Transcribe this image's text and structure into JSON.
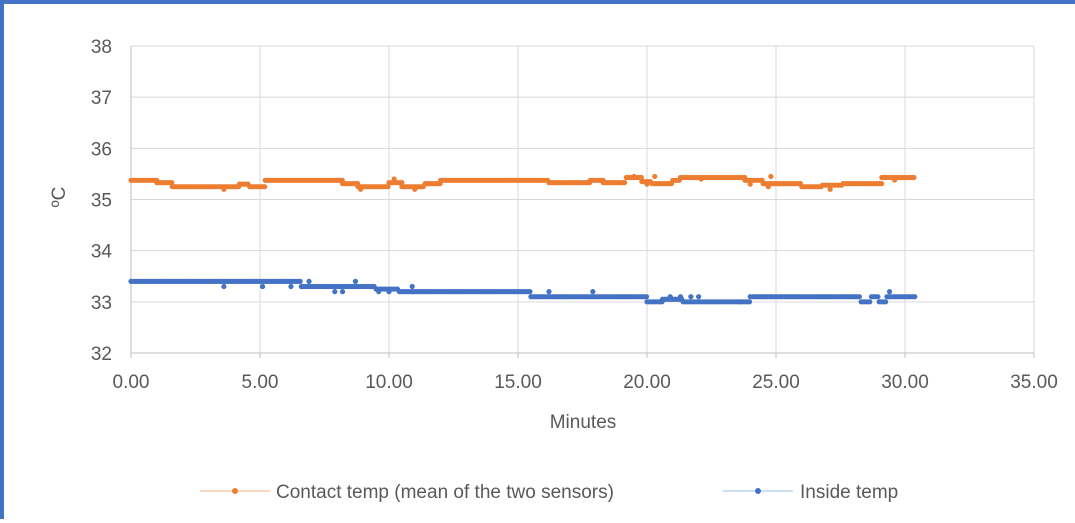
{
  "chart_data": {
    "type": "scatter",
    "title": "",
    "xlabel": "Minutes",
    "ylabel": "ºC",
    "xlim": [
      0,
      35
    ],
    "ylim": [
      32,
      38
    ],
    "x_ticks": [
      0,
      5,
      10,
      15,
      20,
      25,
      30,
      35
    ],
    "x_tick_labels": [
      "0.00",
      "5.00",
      "10.00",
      "15.00",
      "20.00",
      "25.00",
      "30.00",
      "35.00"
    ],
    "y_ticks": [
      32,
      33,
      34,
      35,
      36,
      37,
      38
    ],
    "y_tick_labels": [
      "32",
      "33",
      "34",
      "35",
      "36",
      "37",
      "38"
    ],
    "grid": true,
    "legend_position": "bottom",
    "series": [
      {
        "name": "Contact temp (mean of the two sensors)",
        "color": "#ed7d31",
        "step_minutes": 0.083,
        "segments": [
          {
            "x_start": 0.0,
            "x_end": 1.0,
            "y": 35.375
          },
          {
            "x_start": 1.0,
            "x_end": 1.6,
            "y": 35.33
          },
          {
            "x_start": 1.6,
            "x_end": 4.2,
            "y": 35.25
          },
          {
            "x_start": 4.2,
            "x_end": 4.6,
            "y": 35.3
          },
          {
            "x_start": 4.6,
            "x_end": 5.2,
            "y": 35.25
          },
          {
            "x_start": 5.2,
            "x_end": 8.2,
            "y": 35.375
          },
          {
            "x_start": 8.2,
            "x_end": 8.8,
            "y": 35.31
          },
          {
            "x_start": 8.8,
            "x_end": 10.0,
            "y": 35.25
          },
          {
            "x_start": 10.0,
            "x_end": 10.5,
            "y": 35.33
          },
          {
            "x_start": 10.5,
            "x_end": 11.4,
            "y": 35.25
          },
          {
            "x_start": 11.4,
            "x_end": 12.0,
            "y": 35.31
          },
          {
            "x_start": 12.0,
            "x_end": 16.2,
            "y": 35.375
          },
          {
            "x_start": 16.2,
            "x_end": 17.8,
            "y": 35.33
          },
          {
            "x_start": 17.8,
            "x_end": 18.3,
            "y": 35.375
          },
          {
            "x_start": 18.3,
            "x_end": 19.2,
            "y": 35.33
          },
          {
            "x_start": 19.2,
            "x_end": 19.8,
            "y": 35.43
          },
          {
            "x_start": 19.8,
            "x_end": 20.2,
            "y": 35.35
          },
          {
            "x_start": 20.2,
            "x_end": 21.0,
            "y": 35.31
          },
          {
            "x_start": 21.0,
            "x_end": 21.3,
            "y": 35.375
          },
          {
            "x_start": 21.3,
            "x_end": 23.8,
            "y": 35.43
          },
          {
            "x_start": 23.8,
            "x_end": 24.5,
            "y": 35.375
          },
          {
            "x_start": 24.5,
            "x_end": 25.2,
            "y": 35.31
          },
          {
            "x_start": 25.2,
            "x_end": 26.0,
            "y": 35.31
          },
          {
            "x_start": 26.0,
            "x_end": 26.8,
            "y": 35.25
          },
          {
            "x_start": 26.8,
            "x_end": 27.6,
            "y": 35.28
          },
          {
            "x_start": 27.6,
            "x_end": 29.1,
            "y": 35.31
          },
          {
            "x_start": 29.1,
            "x_end": 30.4,
            "y": 35.43
          }
        ],
        "outliers": [
          {
            "x": 3.6,
            "y": 35.2
          },
          {
            "x": 8.9,
            "y": 35.2
          },
          {
            "x": 10.2,
            "y": 35.4
          },
          {
            "x": 11.0,
            "y": 35.2
          },
          {
            "x": 19.5,
            "y": 35.45
          },
          {
            "x": 20.0,
            "y": 35.3
          },
          {
            "x": 20.3,
            "y": 35.45
          },
          {
            "x": 22.1,
            "y": 35.4
          },
          {
            "x": 24.0,
            "y": 35.3
          },
          {
            "x": 24.7,
            "y": 35.25
          },
          {
            "x": 24.8,
            "y": 35.45
          },
          {
            "x": 27.1,
            "y": 35.2
          },
          {
            "x": 29.6,
            "y": 35.38
          }
        ]
      },
      {
        "name": "Inside temp",
        "color": "#4472c4",
        "step_minutes": 0.083,
        "segments": [
          {
            "x_start": 0.0,
            "x_end": 6.6,
            "y": 33.4
          },
          {
            "x_start": 6.6,
            "x_end": 9.5,
            "y": 33.3
          },
          {
            "x_start": 9.5,
            "x_end": 10.4,
            "y": 33.25
          },
          {
            "x_start": 10.4,
            "x_end": 15.5,
            "y": 33.2
          },
          {
            "x_start": 15.5,
            "x_end": 20.0,
            "y": 33.1
          },
          {
            "x_start": 20.0,
            "x_end": 20.6,
            "y": 33.0
          },
          {
            "x_start": 20.6,
            "x_end": 21.4,
            "y": 33.05
          },
          {
            "x_start": 21.4,
            "x_end": 24.0,
            "y": 33.0
          },
          {
            "x_start": 24.0,
            "x_end": 28.3,
            "y": 33.1
          },
          {
            "x_start": 28.3,
            "x_end": 28.7,
            "y": 33.0
          },
          {
            "x_start": 28.7,
            "x_end": 29.0,
            "y": 33.1
          },
          {
            "x_start": 29.0,
            "x_end": 29.3,
            "y": 33.0
          },
          {
            "x_start": 29.3,
            "x_end": 30.4,
            "y": 33.1
          }
        ],
        "outliers": [
          {
            "x": 3.6,
            "y": 33.3
          },
          {
            "x": 5.1,
            "y": 33.3
          },
          {
            "x": 6.2,
            "y": 33.3
          },
          {
            "x": 6.9,
            "y": 33.4
          },
          {
            "x": 7.9,
            "y": 33.2
          },
          {
            "x": 8.2,
            "y": 33.2
          },
          {
            "x": 8.7,
            "y": 33.4
          },
          {
            "x": 9.6,
            "y": 33.2
          },
          {
            "x": 10.0,
            "y": 33.2
          },
          {
            "x": 10.9,
            "y": 33.3
          },
          {
            "x": 16.2,
            "y": 33.2
          },
          {
            "x": 17.9,
            "y": 33.2
          },
          {
            "x": 20.9,
            "y": 33.1
          },
          {
            "x": 21.3,
            "y": 33.1
          },
          {
            "x": 21.7,
            "y": 33.1
          },
          {
            "x": 22.0,
            "y": 33.1
          },
          {
            "x": 23.6,
            "y": 33.0
          },
          {
            "x": 29.4,
            "y": 33.2
          }
        ]
      }
    ]
  }
}
